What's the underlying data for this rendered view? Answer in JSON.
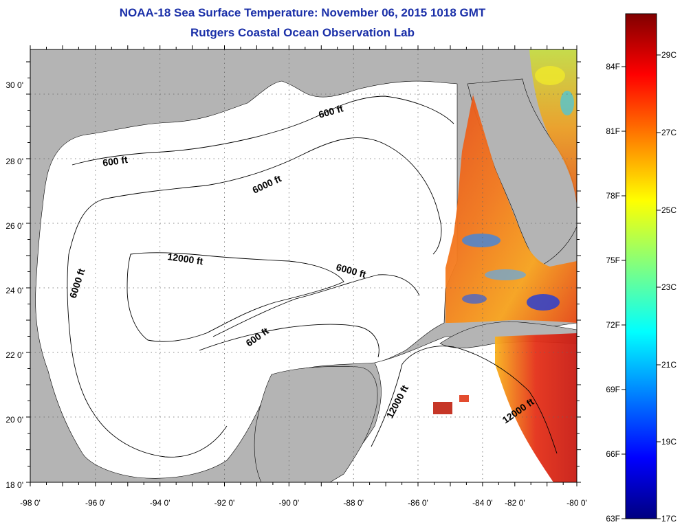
{
  "header": {
    "title": "NOAA-18 Sea Surface Temperature:  November 06, 2015 1018 GMT",
    "subtitle": "Rutgers Coastal Ocean Observation Lab"
  },
  "colors": {
    "land": "#b4b4b4",
    "ocean_no_data": "#ffffff",
    "title": "#1a2fa8",
    "grid": "#666666"
  },
  "map": {
    "lon_range": [
      -98,
      -80
    ],
    "lat_range": [
      18,
      31
    ],
    "lon_ticks": [
      "-98 0'",
      "-96 0'",
      "-94 0'",
      "-92 0'",
      "-90 0'",
      "-88 0'",
      "-86 0'",
      "-84 0'",
      "-82 0'",
      "-80 0'"
    ],
    "lat_ticks": [
      "18 0'",
      "20 0'",
      "22 0'",
      "24 0'",
      "26 0'",
      "28 0'",
      "30 0'"
    ],
    "contour_labels": [
      "600 ft",
      "600 ft",
      "6000 ft",
      "12000 ft",
      "6000 ft",
      "6000 ft",
      "600 ft",
      "12000 ft",
      "12000 ft"
    ]
  },
  "colorbar": {
    "fahrenheit_labels": [
      "84F",
      "81F",
      "78F",
      "75F",
      "72F",
      "69F",
      "66F",
      "63F"
    ],
    "celsius_labels": [
      "29C",
      "27C",
      "25C",
      "23C",
      "21C",
      "19C",
      "17C"
    ],
    "colormap": "jet"
  }
}
